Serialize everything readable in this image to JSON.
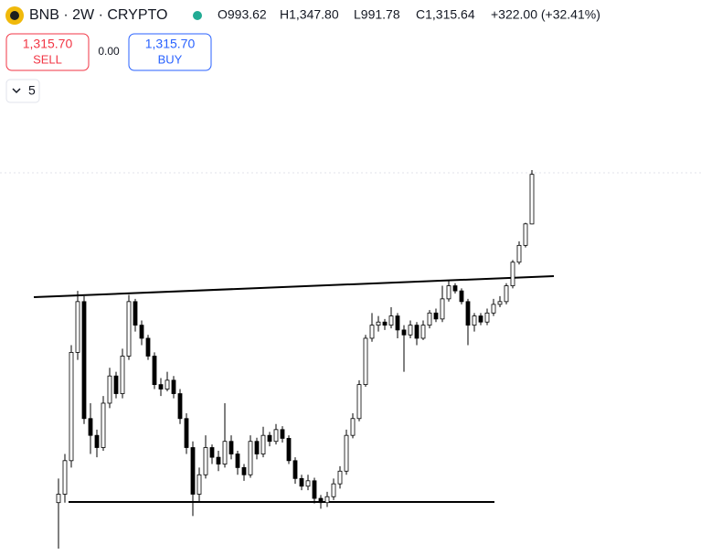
{
  "header": {
    "symbol": "BNB · 2W · CRYPTO",
    "open": "O993.62",
    "high": "H1,347.80",
    "low": "L991.78",
    "close": "C1,315.64",
    "change": "+322.00 (+32.41%)"
  },
  "trade": {
    "sell_price": "1,315.70",
    "sell_label": "SELL",
    "spread": "0.00",
    "buy_price": "1,315.70",
    "buy_label": "BUY"
  },
  "indicator_count": "5",
  "chart_data": {
    "type": "candlestick",
    "log_scale": true,
    "ylim": [
      158,
      1348
    ],
    "up_color": "#ffffff",
    "down_color": "#000000",
    "ohlc": [
      [
        205,
        235,
        158,
        215
      ],
      [
        215,
        270,
        205,
        260
      ],
      [
        260,
        500,
        250,
        480
      ],
      [
        480,
        680,
        460,
        640
      ],
      [
        640,
        660,
        320,
        330
      ],
      [
        330,
        360,
        270,
        300
      ],
      [
        300,
        310,
        265,
        280
      ],
      [
        280,
        375,
        275,
        360
      ],
      [
        360,
        440,
        350,
        420
      ],
      [
        420,
        430,
        370,
        380
      ],
      [
        380,
        490,
        370,
        470
      ],
      [
        470,
        665,
        460,
        640
      ],
      [
        640,
        650,
        540,
        560
      ],
      [
        560,
        575,
        500,
        520
      ],
      [
        520,
        530,
        460,
        470
      ],
      [
        470,
        480,
        390,
        400
      ],
      [
        400,
        415,
        375,
        390
      ],
      [
        390,
        430,
        385,
        410
      ],
      [
        410,
        420,
        370,
        380
      ],
      [
        380,
        390,
        320,
        330
      ],
      [
        330,
        340,
        270,
        280
      ],
      [
        280,
        290,
        190,
        215
      ],
      [
        215,
        250,
        205,
        240
      ],
      [
        240,
        300,
        235,
        280
      ],
      [
        280,
        285,
        255,
        265
      ],
      [
        265,
        275,
        245,
        255
      ],
      [
        255,
        360,
        250,
        290
      ],
      [
        290,
        300,
        262,
        270
      ],
      [
        270,
        275,
        240,
        250
      ],
      [
        250,
        255,
        232,
        240
      ],
      [
        240,
        300,
        236,
        290
      ],
      [
        290,
        296,
        262,
        270
      ],
      [
        270,
        315,
        265,
        300
      ],
      [
        300,
        306,
        282,
        290
      ],
      [
        290,
        320,
        285,
        310
      ],
      [
        310,
        316,
        288,
        295
      ],
      [
        295,
        300,
        255,
        260
      ],
      [
        260,
        265,
        228,
        235
      ],
      [
        235,
        240,
        220,
        225
      ],
      [
        225,
        240,
        220,
        232
      ],
      [
        232,
        236,
        204,
        210
      ],
      [
        210,
        214,
        198,
        205
      ],
      [
        205,
        218,
        200,
        212
      ],
      [
        212,
        235,
        208,
        228
      ],
      [
        228,
        252,
        222,
        245
      ],
      [
        245,
        310,
        240,
        300
      ],
      [
        300,
        340,
        295,
        330
      ],
      [
        330,
        410,
        325,
        400
      ],
      [
        400,
        530,
        395,
        520
      ],
      [
        520,
        600,
        510,
        560
      ],
      [
        560,
        590,
        540,
        570
      ],
      [
        570,
        580,
        545,
        560
      ],
      [
        560,
        620,
        550,
        590
      ],
      [
        590,
        600,
        520,
        545
      ],
      [
        545,
        560,
        430,
        530
      ],
      [
        530,
        575,
        520,
        560
      ],
      [
        560,
        570,
        500,
        520
      ],
      [
        520,
        575,
        515,
        560
      ],
      [
        560,
        610,
        550,
        600
      ],
      [
        600,
        615,
        570,
        580
      ],
      [
        580,
        700,
        570,
        650
      ],
      [
        650,
        720,
        640,
        700
      ],
      [
        700,
        710,
        670,
        680
      ],
      [
        680,
        690,
        630,
        640
      ],
      [
        640,
        650,
        500,
        560
      ],
      [
        560,
        600,
        540,
        590
      ],
      [
        590,
        600,
        560,
        570
      ],
      [
        570,
        615,
        560,
        600
      ],
      [
        600,
        650,
        590,
        630
      ],
      [
        630,
        660,
        620,
        640
      ],
      [
        640,
        710,
        630,
        700
      ],
      [
        700,
        810,
        690,
        800
      ],
      [
        800,
        900,
        790,
        880
      ],
      [
        880,
        1000,
        870,
        994
      ],
      [
        993.62,
        1347.8,
        991.78,
        1315.64
      ]
    ]
  }
}
